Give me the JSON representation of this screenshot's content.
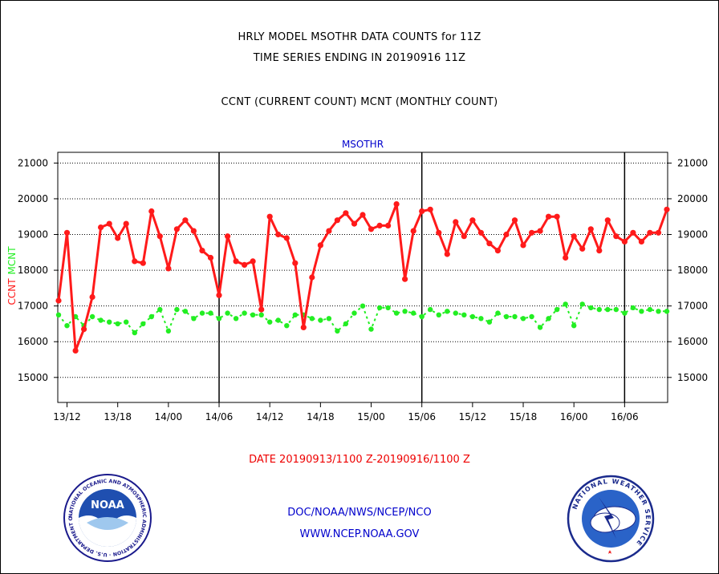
{
  "titles": {
    "line1": "HRLY MODEL MSOTHR DATA COUNTS for 11Z",
    "line2": "TIME SERIES ENDING IN 20190916 11Z",
    "line3": "CCNT (CURRENT COUNT) MCNT (MONTHLY COUNT)"
  },
  "footer": {
    "date_range": "DATE 20190913/1100 Z-20190916/1100 Z",
    "org": "DOC/NOAA/NWS/NCEP/NCO",
    "url": "WWW.NCEP.NOAA.GOV"
  },
  "logos": {
    "noaa": {
      "ring_text": "NATIONAL OCEANIC AND ATMOSPHERIC ADMINISTRATION · U.S. DEPARTMENT OF COMMERCE ·",
      "center_text": "NOAA"
    },
    "nws": {
      "ring_text": "NATIONAL WEATHER SERVICE"
    }
  },
  "colors": {
    "ccnt": "#ff1a1a",
    "mcnt": "#22ee22",
    "panel_label": "#0000cc",
    "footer_blue": "#0000cc",
    "footer_red": "#ee0000",
    "grid": "#000000"
  },
  "chart_data": {
    "type": "line",
    "panel_label": "MSOTHR",
    "ylabel_ccnt": "CCNT",
    "ylabel_mcnt": "MCNT",
    "ylim": [
      14300,
      21300
    ],
    "y_ticks": [
      15000,
      16000,
      17000,
      18000,
      19000,
      20000,
      21000
    ],
    "y_tick_labels": [
      "15000",
      "16000",
      "17000",
      "18000",
      "19000",
      "20000",
      "21000"
    ],
    "x_range_hours": [
      0,
      72
    ],
    "x_tick_labels": [
      "13/12",
      "13/18",
      "14/00",
      "14/06",
      "14/12",
      "14/18",
      "15/00",
      "15/06",
      "15/12",
      "15/18",
      "16/00",
      "16/06"
    ],
    "x_day_boundaries": [
      "14/06",
      "15/06",
      "16/06"
    ],
    "grid": "horizontal dotted",
    "series": [
      {
        "name": "CCNT",
        "color": "#ff1a1a",
        "values": [
          17150,
          19050,
          15750,
          16350,
          17250,
          19200,
          19300,
          18900,
          19300,
          18250,
          18200,
          19650,
          18950,
          18050,
          19150,
          19400,
          19100,
          18550,
          18350,
          17300,
          18950,
          18250,
          18150,
          18250,
          16900,
          19500,
          19000,
          18900,
          18200,
          16400,
          17800,
          18700,
          19100,
          19400,
          19600,
          19300,
          19550,
          19150,
          19250,
          19250,
          19850,
          17750,
          19100,
          19650,
          19700,
          19050,
          18450,
          19350,
          18950,
          19400,
          19050,
          18750,
          18550,
          19000,
          19400,
          18700,
          19050,
          19100,
          19500,
          19500,
          18350,
          18950,
          18600,
          19150,
          18550,
          19400,
          18950,
          18800,
          19050,
          18800,
          19050,
          19050,
          19700
        ]
      },
      {
        "name": "MCNT",
        "color": "#22ee22",
        "values": [
          16750,
          16450,
          16700,
          16450,
          16700,
          16600,
          16550,
          16500,
          16550,
          16250,
          16500,
          16700,
          16900,
          16300,
          16900,
          16850,
          16650,
          16800,
          16800,
          16650,
          16800,
          16650,
          16800,
          16750,
          16750,
          16550,
          16600,
          16450,
          16750,
          16750,
          16650,
          16600,
          16650,
          16300,
          16500,
          16800,
          17000,
          16350,
          16950,
          16950,
          16800,
          16850,
          16800,
          16700,
          16900,
          16750,
          16850,
          16800,
          16750,
          16700,
          16650,
          16550,
          16800,
          16700,
          16700,
          16650,
          16700,
          16400,
          16650,
          16900,
          17050,
          16450,
          17050,
          16950,
          16900,
          16900,
          16900,
          16800,
          16950,
          16850,
          16900,
          16850,
          16850
        ]
      }
    ]
  }
}
